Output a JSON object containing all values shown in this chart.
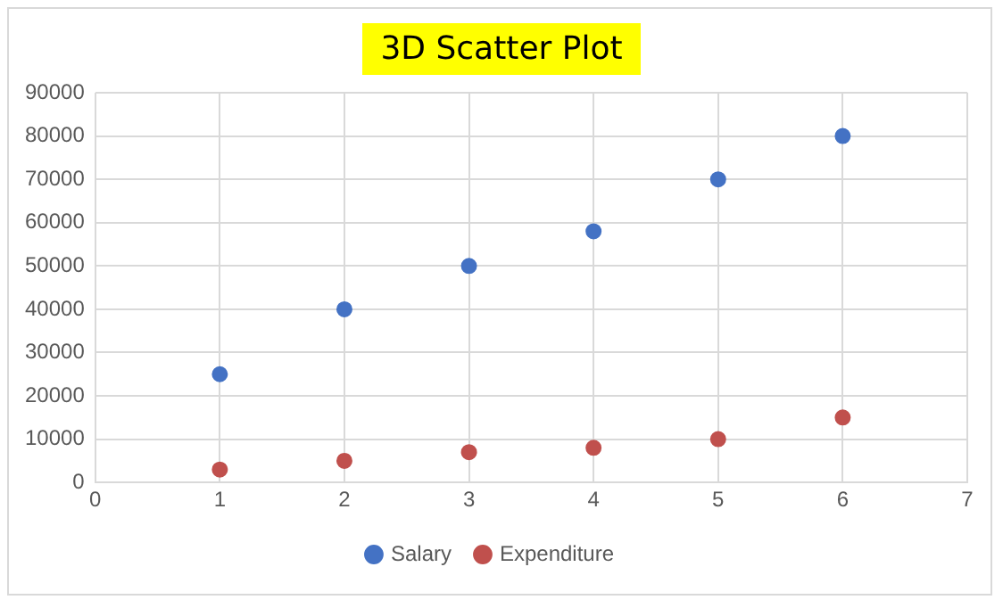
{
  "chart_data": {
    "type": "scatter",
    "title": "3D Scatter Plot",
    "x": [
      1,
      2,
      3,
      4,
      5,
      6
    ],
    "series": [
      {
        "name": "Salary",
        "color": "#4472c4",
        "values": [
          25000,
          40000,
          50000,
          58000,
          70000,
          80000
        ]
      },
      {
        "name": "Expenditure",
        "color": "#c0504d",
        "values": [
          3000,
          5000,
          7000,
          8000,
          10000,
          15000
        ]
      }
    ],
    "xlim": [
      0,
      7
    ],
    "xticks": [
      0,
      1,
      2,
      3,
      4,
      5,
      6,
      7
    ],
    "ylim": [
      0,
      90000
    ],
    "yticks": [
      0,
      10000,
      20000,
      30000,
      40000,
      50000,
      60000,
      70000,
      80000,
      90000
    ],
    "grid": true,
    "legend": "bottom",
    "marker": "circle"
  }
}
